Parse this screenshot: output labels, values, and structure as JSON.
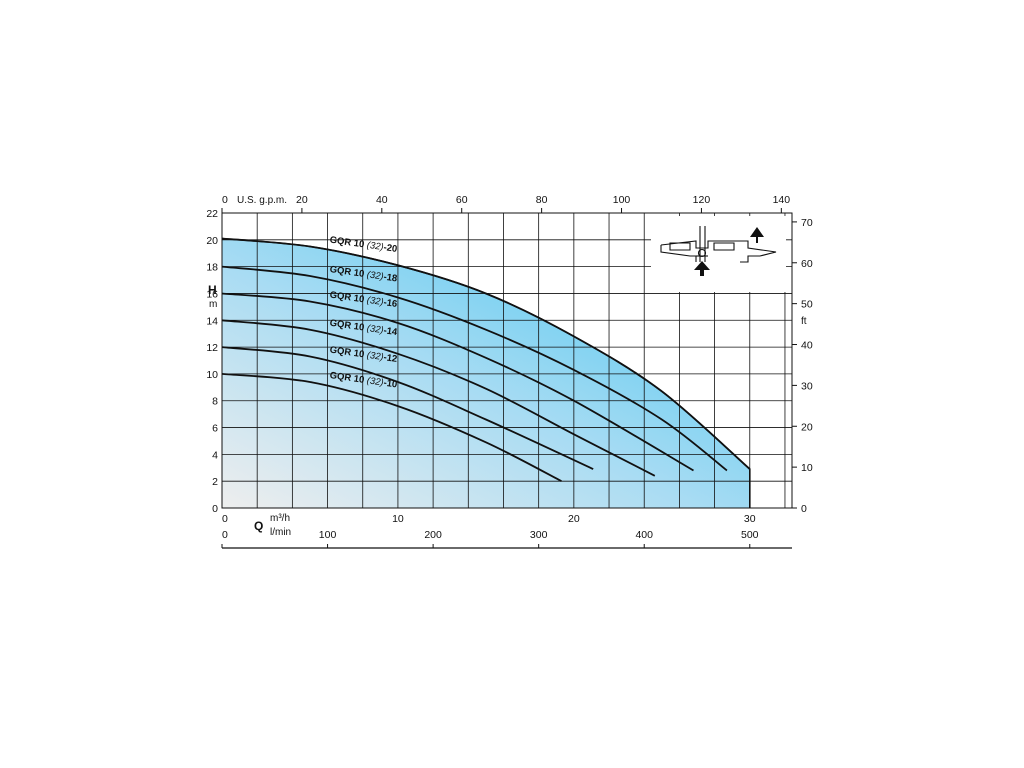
{
  "chart_data": {
    "type": "line",
    "x_primary": {
      "unit_line1": "m³/h",
      "unit_line2": "l/min",
      "name": "Q",
      "ticks": [
        0,
        10,
        20,
        30
      ],
      "range": [
        0,
        32.4
      ]
    },
    "x_lmin": {
      "ticks": [
        0,
        100,
        200,
        300,
        400,
        500
      ]
    },
    "x_usgpm": {
      "unit": "U.S. g.p.m.",
      "ticks": [
        0,
        20,
        40,
        60,
        80,
        100,
        120,
        140
      ]
    },
    "y_primary": {
      "name": "H",
      "unit": "m",
      "ticks": [
        0,
        2,
        4,
        6,
        8,
        10,
        12,
        14,
        16,
        18,
        20,
        22
      ],
      "range": [
        0,
        22
      ]
    },
    "y_ft": {
      "unit": "ft",
      "ticks": [
        0,
        10,
        20,
        30,
        40,
        50,
        60,
        70
      ]
    },
    "grid": true,
    "series": [
      {
        "name": "GQR 10 (32)-10",
        "x": [
          0,
          5,
          10,
          15,
          19.3
        ],
        "y": [
          10,
          9.4,
          7.6,
          4.9,
          2.0
        ]
      },
      {
        "name": "GQR 10 (32)-12",
        "x": [
          0,
          5,
          10,
          15,
          21.1
        ],
        "y": [
          12,
          11.3,
          9.4,
          6.6,
          2.9
        ]
      },
      {
        "name": "GQR 10 (32)-14",
        "x": [
          0,
          5,
          10,
          15,
          20,
          24.6
        ],
        "y": [
          14,
          13.3,
          11.5,
          8.9,
          5.5,
          2.4
        ]
      },
      {
        "name": "GQR 10 (32)-16",
        "x": [
          0,
          5,
          10,
          15,
          20,
          26.8
        ],
        "y": [
          16,
          15.4,
          13.8,
          11.2,
          8.0,
          2.8
        ]
      },
      {
        "name": "GQR 10 (32)-18",
        "x": [
          0,
          5,
          10,
          15,
          20,
          25,
          28.7
        ],
        "y": [
          18,
          17.3,
          15.7,
          13.3,
          10.3,
          6.6,
          2.8
        ]
      },
      {
        "name": "GQR 10 (32)-20",
        "x": [
          0,
          5,
          10,
          15,
          20,
          25,
          30
        ],
        "y": [
          20.1,
          19.5,
          18.1,
          16.0,
          12.8,
          8.7,
          2.9
        ]
      }
    ]
  }
}
